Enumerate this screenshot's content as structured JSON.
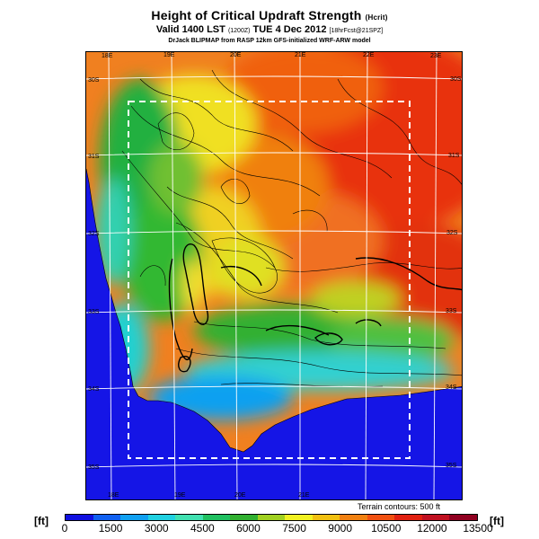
{
  "title": {
    "main": "Height of Critical Updraft Strength",
    "suffix": "(Hcrit)"
  },
  "valid_line": {
    "main": "Valid 1400 LST",
    "code": "(1200Z)",
    "date": "TUE 4 Dec 2012",
    "forecast": "[18hrFcst@21SPZ]"
  },
  "credit": "DrJack BLIPMAP from RASP 12km GFS-initialized WRF-ARW model",
  "map": {
    "top_lon_labels": [
      "18E",
      "19E",
      "20E",
      "21E",
      "22E",
      "23E"
    ],
    "bottom_lon_labels": [
      "18E",
      "19E",
      "20E",
      "21E"
    ],
    "right_lat_labels": [
      "30S",
      "31S",
      "32S",
      "33S",
      "34S",
      "35S"
    ],
    "left_lat_labels": [
      "30S",
      "31S",
      "32S",
      "33S",
      "34S",
      "35S"
    ],
    "terrain_note": "Terrain contours: 500 ft"
  },
  "colorbar": {
    "unit": "[ft]",
    "ticks": [
      "0",
      "1500",
      "3000",
      "4500",
      "6000",
      "7500",
      "9000",
      "10500",
      "12000",
      "13500"
    ],
    "colors": [
      "#1010e0",
      "#1060f0",
      "#10a0f0",
      "#20d0e0",
      "#40e0b0",
      "#20c060",
      "#30b030",
      "#a0d020",
      "#f0f020",
      "#f0c010",
      "#f08010",
      "#f05010",
      "#e02010",
      "#c01020",
      "#900020"
    ]
  }
}
